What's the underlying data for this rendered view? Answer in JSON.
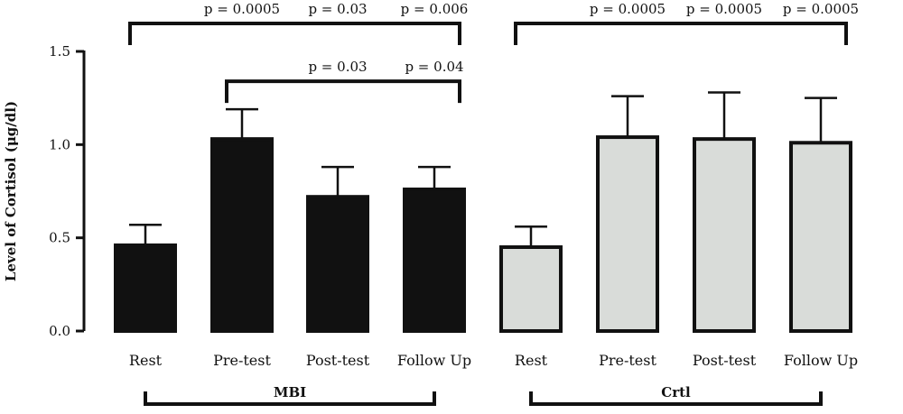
{
  "chart_data": {
    "type": "bar",
    "title": "",
    "xlabel": "",
    "ylabel": "Level of Cortisol (μg/dl)",
    "ylim": [
      0,
      1.5
    ],
    "yticks": [
      "0.0",
      "0.5",
      "1.0",
      "1.5"
    ],
    "grid": false,
    "categories": [
      "Rest",
      "Pre-test",
      "Post-test",
      "Follow Up",
      "Rest",
      "Pre-test",
      "Post-test",
      "Follow Up"
    ],
    "groups": [
      {
        "label": "MBI",
        "start": 0,
        "end": 3,
        "color": "#111111"
      },
      {
        "label": "Crtl",
        "start": 4,
        "end": 7,
        "color": "#d9dcd9"
      }
    ],
    "values": [
      0.46,
      1.03,
      0.72,
      0.76,
      0.45,
      1.04,
      1.03,
      1.01
    ],
    "errors": [
      0.11,
      0.16,
      0.16,
      0.12,
      0.11,
      0.22,
      0.25,
      0.24
    ],
    "annotations": [
      {
        "from": 0,
        "to": 3,
        "y": 1.65,
        "labels": [
          {
            "at": 1,
            "text": "p = 0.0005"
          },
          {
            "at": 2,
            "text": "p = 0.03"
          },
          {
            "at": 3,
            "text": "p = 0.006"
          }
        ]
      },
      {
        "from": 1,
        "to": 3,
        "y": 1.34,
        "labels": [
          {
            "at": 2,
            "text": "p = 0.03"
          },
          {
            "at": 3,
            "text": "p = 0.04"
          }
        ]
      },
      {
        "from": 4,
        "to": 7,
        "y": 1.65,
        "labels": [
          {
            "at": 5,
            "text": "p = 0.0005"
          },
          {
            "at": 6,
            "text": "p = 0.0005"
          },
          {
            "at": 7,
            "text": "p = 0.0005"
          }
        ]
      }
    ]
  }
}
